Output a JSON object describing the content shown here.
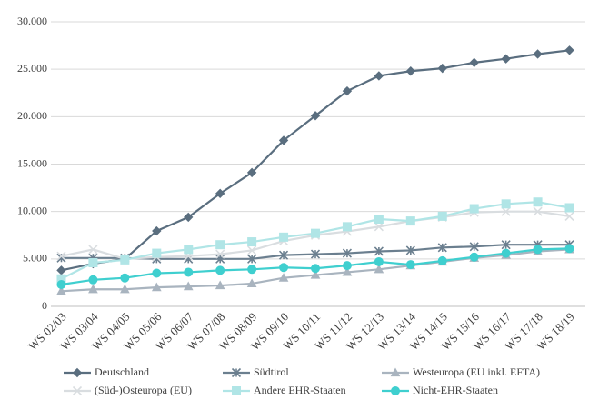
{
  "chart_data": {
    "type": "line",
    "categories": [
      "WS 02/03",
      "WS 03/04",
      "WS 04/05",
      "WS 05/06",
      "WS 06/07",
      "WS 07/08",
      "WS 08/09",
      "WS 09/10",
      "WS 10/11",
      "WS 11/12",
      "WS 12/13",
      "WS 13/14",
      "WS 14/15",
      "WS 15/16",
      "WS 16/17",
      "WS 17/18",
      "WS 18/19"
    ],
    "series": [
      {
        "name": "Deutschland",
        "color": "#5a6e7f",
        "marker": "diamond",
        "values": [
          3800,
          4500,
          5000,
          7950,
          9400,
          11900,
          14100,
          17500,
          20100,
          22700,
          24300,
          24800,
          25100,
          25700,
          26100,
          26600,
          27000
        ]
      },
      {
        "name": "Südtirol",
        "color": "#6b7f8f",
        "marker": "star",
        "values": [
          5100,
          5100,
          5100,
          5000,
          5000,
          5000,
          5000,
          5400,
          5500,
          5600,
          5800,
          5900,
          6200,
          6300,
          6500,
          6500,
          6500
        ]
      },
      {
        "name": "Westeuropa (EU inkl. EFTA)",
        "color": "#a9b4bf",
        "marker": "triangle",
        "values": [
          1600,
          1800,
          1800,
          2000,
          2100,
          2200,
          2400,
          3000,
          3300,
          3600,
          3900,
          4300,
          4700,
          5100,
          5400,
          5800,
          6000
        ]
      },
      {
        "name": "(Süd-)Osteuropa (EU)",
        "color": "#d9dde0",
        "marker": "x",
        "values": [
          5300,
          6000,
          5000,
          5200,
          5300,
          5500,
          5900,
          6900,
          7500,
          7900,
          8400,
          9000,
          9400,
          9900,
          10000,
          10000,
          9500
        ]
      },
      {
        "name": "Andere EHR-Staaten",
        "color": "#b0e5e6",
        "marker": "square",
        "values": [
          2900,
          4600,
          4900,
          5600,
          6000,
          6500,
          6800,
          7300,
          7700,
          8400,
          9200,
          9000,
          9500,
          10300,
          10800,
          11000,
          10400
        ]
      },
      {
        "name": "Nicht-EHR-Staaten",
        "color": "#3fcfcf",
        "marker": "circle",
        "values": [
          2300,
          2800,
          3000,
          3500,
          3600,
          3800,
          3900,
          4100,
          4000,
          4300,
          4700,
          4400,
          4800,
          5200,
          5600,
          6000,
          6100
        ]
      }
    ],
    "ylim": [
      0,
      30000
    ],
    "yticks": [
      0,
      {
        "value": 5000,
        "label": "5.000"
      },
      {
        "value": 10000,
        "label": "10.000"
      },
      {
        "value": 15000,
        "label": "15.000"
      },
      {
        "value": 20000,
        "label": "20.000"
      },
      {
        "value": 25000,
        "label": "25.000"
      },
      {
        "value": 30000,
        "label": "30.000"
      }
    ],
    "grid": true,
    "legend": "bottom"
  }
}
